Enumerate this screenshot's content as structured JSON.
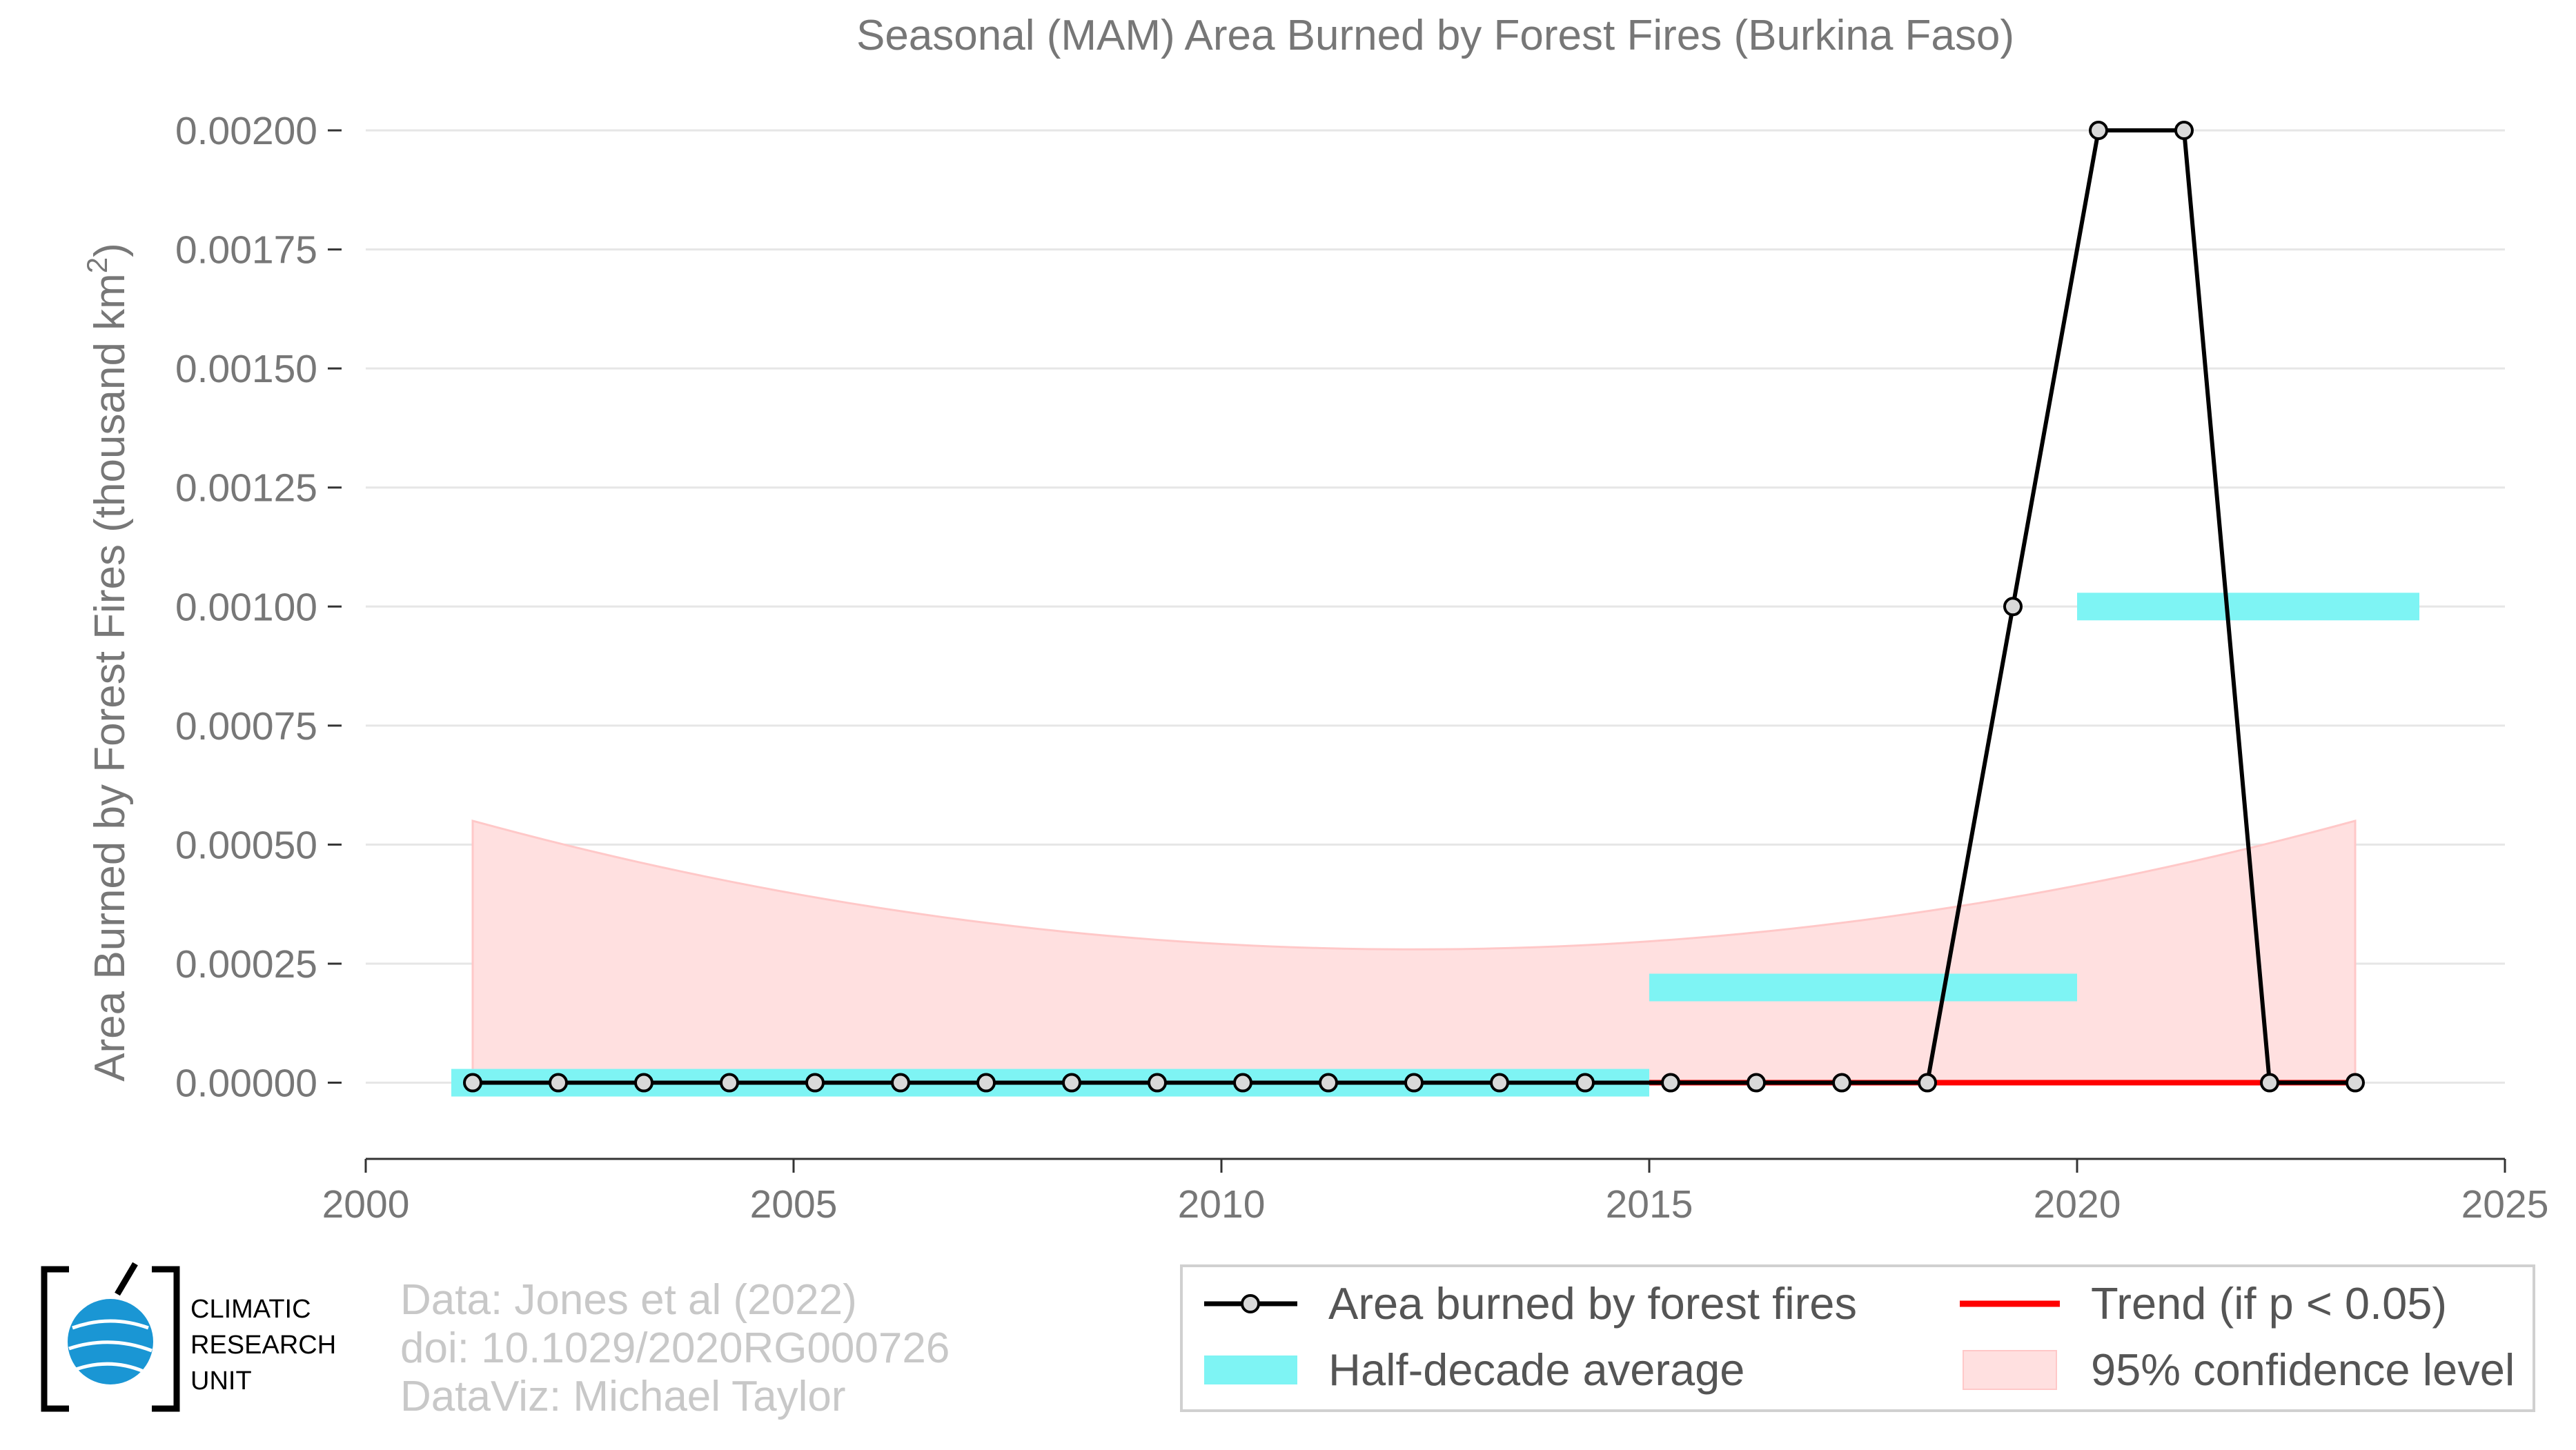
{
  "chart_data": {
    "type": "line",
    "title": "Seasonal (MAM) Area Burned by Forest Fires (Burkina Faso)",
    "ylabel": "Area Burned by Forest Fires (thousand km",
    "ylabel_sup": "2",
    "ylabel_end": ")",
    "xlim": [
      2000,
      2025
    ],
    "ylim": [
      -0.00016,
      0.0021
    ],
    "xticks": [
      2000,
      2005,
      2010,
      2015,
      2020,
      2025
    ],
    "xtick_labels": [
      "2000",
      "2005",
      "2010",
      "2015",
      "2020",
      "2025"
    ],
    "yticks": [
      0,
      0.00025,
      0.0005,
      0.00075,
      0.001,
      0.00125,
      0.0015,
      0.00175,
      0.002
    ],
    "ytick_labels": [
      "0.00000",
      "0.00025",
      "0.00050",
      "0.00075",
      "0.00100",
      "0.00125",
      "0.00150",
      "0.00175",
      "0.00200"
    ],
    "grid": true,
    "series": [
      {
        "name": "Area burned by forest fires",
        "color": "#000000",
        "x": [
          2001.25,
          2002.25,
          2003.25,
          2004.25,
          2005.25,
          2006.25,
          2007.25,
          2008.25,
          2009.25,
          2010.25,
          2011.25,
          2012.25,
          2013.25,
          2014.25,
          2015.25,
          2016.25,
          2017.25,
          2018.25,
          2019.25,
          2020.25,
          2021.25,
          2022.25,
          2023.25
        ],
        "y": [
          0,
          0,
          0,
          0,
          0,
          0,
          0,
          0,
          0,
          0,
          0,
          0,
          0,
          0,
          0,
          0,
          0,
          0,
          0.001,
          0.002,
          0.002,
          0,
          0
        ]
      }
    ],
    "half_decade_average": {
      "name": "Half-decade average",
      "color": "#7ef4f4",
      "segments": [
        {
          "x0": 2001,
          "x1": 2015,
          "y": 0
        },
        {
          "x0": 2015,
          "x1": 2020,
          "y": 0.0002
        },
        {
          "x0": 2020,
          "x1": 2024,
          "y": 0.001
        }
      ]
    },
    "trend": {
      "name": "Trend (if p < 0.05)",
      "color": "#ff0000",
      "x0": 2015,
      "x1": 2023.25,
      "y": 0
    },
    "confidence": {
      "name": "95% confidence level",
      "color": "#ffe0e0",
      "x0": 2001.25,
      "x1": 2023.25,
      "upper_edge": 0.00055,
      "upper_min": 0.00028,
      "upper_min_x": 2012.25,
      "lower": 0
    },
    "legend": [
      {
        "label": "Area burned by forest fires",
        "kind": "line-marker"
      },
      {
        "label": "Trend (if p < 0.05)",
        "kind": "red-line"
      },
      {
        "label": "Half-decade average",
        "kind": "cyan-band"
      },
      {
        "label": "95% confidence level",
        "kind": "pink-box"
      }
    ],
    "legend_position": "bottom-right"
  },
  "credits": {
    "line1": "Data: Jones et al (2022)",
    "line2": "doi: 10.1029/2020RG000726",
    "line3": "DataViz: Michael Taylor"
  },
  "logo": {
    "line1": "CLIMATIC",
    "line2": "RESEARCH",
    "line3": "UNIT",
    "icon": "globe-icon"
  }
}
